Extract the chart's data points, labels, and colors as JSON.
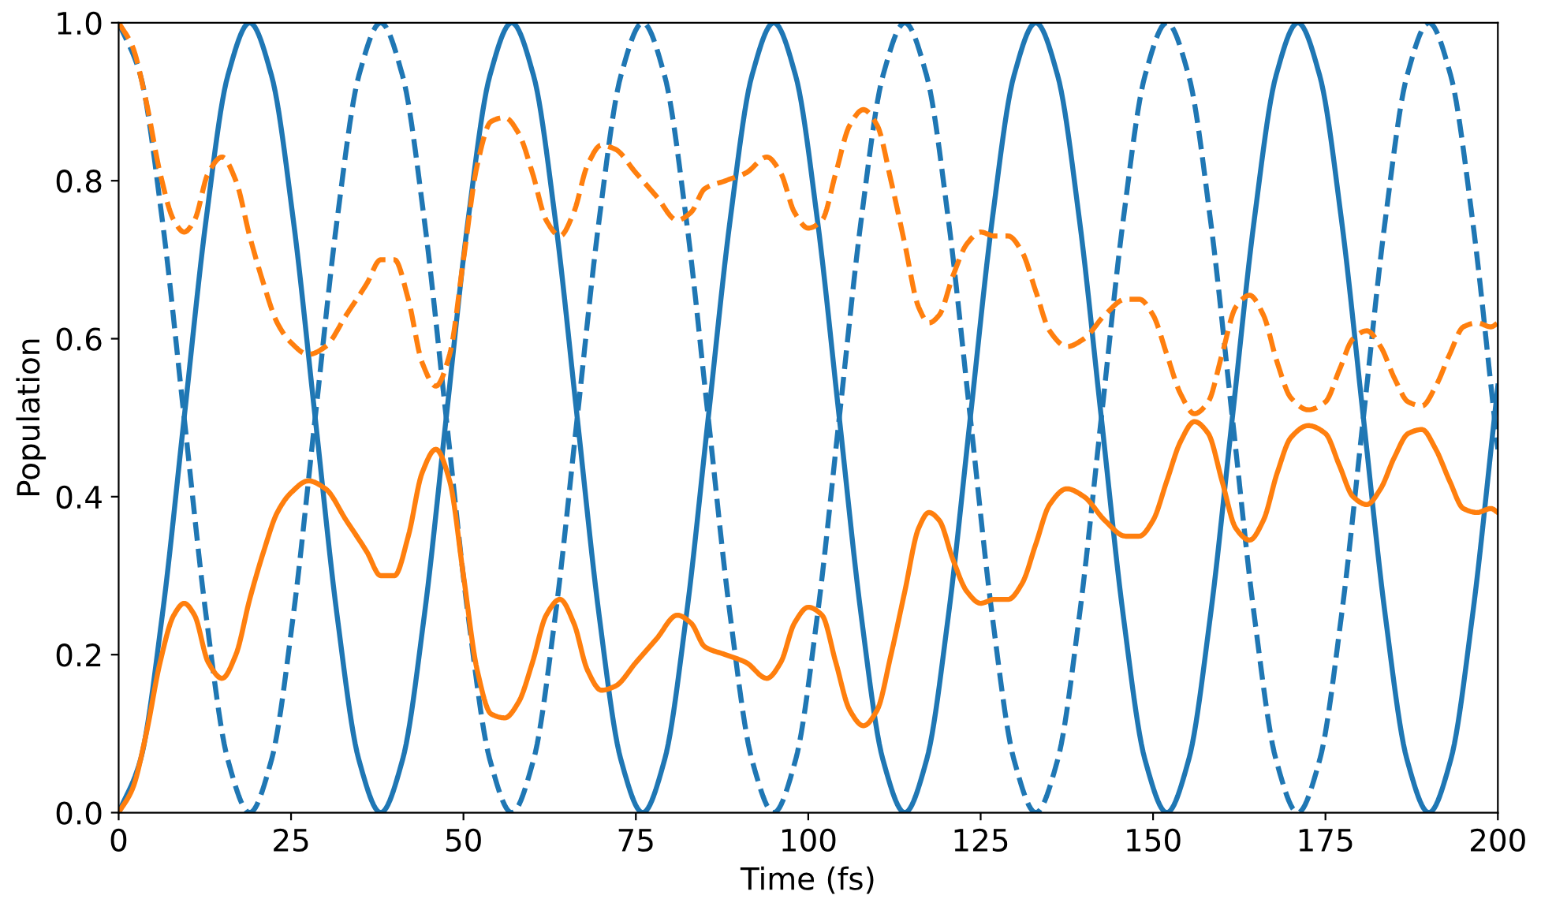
{
  "chart_data": {
    "type": "line",
    "xlabel": "Time (fs)",
    "ylabel": "Population",
    "xlim": [
      0,
      200
    ],
    "ylim": [
      0,
      1
    ],
    "xticks": [
      0,
      25,
      50,
      75,
      100,
      125,
      150,
      175,
      200
    ],
    "yticks": [
      {
        "value": 0,
        "label": "0.0"
      },
      {
        "value": 0.2,
        "label": "0.2"
      },
      {
        "value": 0.4,
        "label": "0.4"
      },
      {
        "value": 0.6,
        "label": "0.6"
      },
      {
        "value": 0.8,
        "label": "0.8"
      },
      {
        "value": 1,
        "label": "1.0"
      }
    ],
    "grid": false,
    "legend": false,
    "marker": "none",
    "series": [
      {
        "color": "#1f77b4",
        "line_style": "solid",
        "x": [
          0,
          3.17,
          6.33,
          9.5,
          12.67,
          15.83,
          19,
          22.17,
          25.33,
          28.5,
          31.67,
          34.83,
          38,
          41.17,
          44.33,
          47.5,
          50.67,
          53.83,
          57,
          60.17,
          63.33,
          66.5,
          69.67,
          72.83,
          76,
          79.17,
          82.33,
          85.5,
          88.67,
          91.83,
          95,
          98.17,
          101.33,
          104.5,
          107.67,
          110.83,
          114,
          117.17,
          120.33,
          123.5,
          126.67,
          129.83,
          133,
          136.17,
          139.33,
          142.5,
          145.67,
          148.83,
          152,
          155.17,
          158.33,
          161.5,
          164.67,
          167.83,
          171,
          174.17,
          177.33,
          180.5,
          183.67,
          186.83,
          190,
          193.17,
          196.33,
          199.5,
          200
        ],
        "values": [
          0,
          0.067,
          0.25,
          0.5,
          0.75,
          0.933,
          1,
          0.933,
          0.75,
          0.5,
          0.25,
          0.067,
          0,
          0.067,
          0.25,
          0.5,
          0.75,
          0.933,
          1,
          0.933,
          0.75,
          0.5,
          0.25,
          0.067,
          0,
          0.067,
          0.25,
          0.5,
          0.75,
          0.933,
          1,
          0.933,
          0.75,
          0.5,
          0.25,
          0.067,
          0,
          0.067,
          0.25,
          0.5,
          0.75,
          0.933,
          1,
          0.933,
          0.75,
          0.5,
          0.25,
          0.067,
          0,
          0.067,
          0.25,
          0.5,
          0.75,
          0.933,
          1,
          0.933,
          0.75,
          0.5,
          0.25,
          0.067,
          0,
          0.067,
          0.25,
          0.5,
          0.54
        ]
      },
      {
        "color": "#1f77b4",
        "line_style": "dashed",
        "x": [
          0,
          3.17,
          6.33,
          9.5,
          12.67,
          15.83,
          19,
          22.17,
          25.33,
          28.5,
          31.67,
          34.83,
          38,
          41.17,
          44.33,
          47.5,
          50.67,
          53.83,
          57,
          60.17,
          63.33,
          66.5,
          69.67,
          72.83,
          76,
          79.17,
          82.33,
          85.5,
          88.67,
          91.83,
          95,
          98.17,
          101.33,
          104.5,
          107.67,
          110.83,
          114,
          117.17,
          120.33,
          123.5,
          126.67,
          129.83,
          133,
          136.17,
          139.33,
          142.5,
          145.67,
          148.83,
          152,
          155.17,
          158.33,
          161.5,
          164.67,
          167.83,
          171,
          174.17,
          177.33,
          180.5,
          183.67,
          186.83,
          190,
          193.17,
          196.33,
          199.5,
          200
        ],
        "values": [
          1,
          0.933,
          0.75,
          0.5,
          0.25,
          0.067,
          0,
          0.067,
          0.25,
          0.5,
          0.75,
          0.933,
          1,
          0.933,
          0.75,
          0.5,
          0.25,
          0.067,
          0,
          0.067,
          0.25,
          0.5,
          0.75,
          0.933,
          1,
          0.933,
          0.75,
          0.5,
          0.25,
          0.067,
          0,
          0.067,
          0.25,
          0.5,
          0.75,
          0.933,
          1,
          0.933,
          0.75,
          0.5,
          0.25,
          0.067,
          0,
          0.067,
          0.25,
          0.5,
          0.75,
          0.933,
          1,
          0.933,
          0.75,
          0.5,
          0.25,
          0.067,
          0,
          0.067,
          0.25,
          0.5,
          0.75,
          0.933,
          1,
          0.933,
          0.75,
          0.5,
          0.46
        ]
      },
      {
        "color": "#ff7f0e",
        "line_style": "solid",
        "x": [
          0,
          2,
          4,
          6,
          8,
          9.5,
          11,
          13,
          15,
          17,
          19,
          21,
          23,
          25,
          27.5,
          30,
          33,
          36,
          38,
          40,
          42,
          44,
          46,
          48,
          50,
          52,
          54,
          56,
          58,
          60,
          62,
          64,
          66,
          68,
          70,
          72,
          75,
          78,
          81,
          83,
          85,
          88,
          91,
          94,
          96,
          98,
          100,
          102,
          104,
          106,
          108,
          110,
          112,
          114,
          116,
          117.5,
          119,
          121,
          123,
          125,
          127,
          129,
          131,
          133,
          135,
          137.5,
          140,
          143,
          146,
          148,
          150,
          152,
          154,
          156,
          158,
          160,
          162,
          164,
          166,
          168,
          170,
          172.5,
          175,
          177,
          179,
          181,
          183,
          185,
          187,
          189,
          191,
          193,
          195,
          197,
          199,
          200
        ],
        "values": [
          0,
          0.03,
          0.1,
          0.19,
          0.25,
          0.265,
          0.25,
          0.19,
          0.17,
          0.2,
          0.27,
          0.33,
          0.38,
          0.405,
          0.42,
          0.41,
          0.37,
          0.33,
          0.3,
          0.3,
          0.35,
          0.43,
          0.46,
          0.42,
          0.3,
          0.18,
          0.125,
          0.12,
          0.14,
          0.19,
          0.25,
          0.27,
          0.24,
          0.18,
          0.155,
          0.16,
          0.19,
          0.22,
          0.25,
          0.24,
          0.21,
          0.2,
          0.19,
          0.17,
          0.19,
          0.24,
          0.26,
          0.25,
          0.19,
          0.13,
          0.11,
          0.13,
          0.2,
          0.28,
          0.36,
          0.38,
          0.37,
          0.32,
          0.28,
          0.265,
          0.27,
          0.27,
          0.29,
          0.34,
          0.39,
          0.41,
          0.4,
          0.37,
          0.35,
          0.35,
          0.37,
          0.42,
          0.47,
          0.495,
          0.48,
          0.42,
          0.36,
          0.345,
          0.37,
          0.43,
          0.475,
          0.49,
          0.48,
          0.44,
          0.4,
          0.39,
          0.41,
          0.45,
          0.48,
          0.485,
          0.46,
          0.42,
          0.385,
          0.38,
          0.385,
          0.38
        ]
      },
      {
        "color": "#ff7f0e",
        "line_style": "dashed",
        "x": [
          0,
          2,
          4,
          6,
          8,
          9.5,
          11,
          13,
          15,
          17,
          19,
          21,
          23,
          25,
          27.5,
          30,
          33,
          36,
          38,
          40,
          42,
          44,
          46,
          48,
          50,
          52,
          54,
          56,
          58,
          60,
          62,
          64,
          66,
          68,
          70,
          72,
          75,
          78,
          81,
          83,
          85,
          88,
          91,
          94,
          96,
          98,
          100,
          102,
          104,
          106,
          108,
          110,
          112,
          114,
          116,
          117.5,
          119,
          121,
          123,
          125,
          127,
          129,
          131,
          133,
          135,
          137.5,
          140,
          143,
          146,
          148,
          150,
          152,
          154,
          156,
          158,
          160,
          162,
          164,
          166,
          168,
          170,
          172.5,
          175,
          177,
          179,
          181,
          183,
          185,
          187,
          189,
          191,
          193,
          195,
          197,
          199,
          200
        ],
        "values": [
          1,
          0.97,
          0.9,
          0.81,
          0.75,
          0.735,
          0.75,
          0.81,
          0.83,
          0.8,
          0.73,
          0.67,
          0.62,
          0.595,
          0.58,
          0.59,
          0.63,
          0.67,
          0.7,
          0.7,
          0.65,
          0.57,
          0.54,
          0.58,
          0.7,
          0.82,
          0.875,
          0.88,
          0.86,
          0.81,
          0.75,
          0.73,
          0.76,
          0.82,
          0.845,
          0.84,
          0.81,
          0.78,
          0.75,
          0.76,
          0.79,
          0.8,
          0.81,
          0.83,
          0.81,
          0.76,
          0.74,
          0.75,
          0.81,
          0.87,
          0.89,
          0.87,
          0.8,
          0.72,
          0.64,
          0.62,
          0.63,
          0.68,
          0.72,
          0.735,
          0.73,
          0.73,
          0.71,
          0.66,
          0.61,
          0.59,
          0.6,
          0.63,
          0.65,
          0.65,
          0.63,
          0.58,
          0.53,
          0.505,
          0.52,
          0.58,
          0.64,
          0.655,
          0.63,
          0.57,
          0.525,
          0.51,
          0.52,
          0.56,
          0.6,
          0.61,
          0.59,
          0.55,
          0.52,
          0.515,
          0.54,
          0.58,
          0.615,
          0.62,
          0.615,
          0.62
        ]
      }
    ]
  }
}
